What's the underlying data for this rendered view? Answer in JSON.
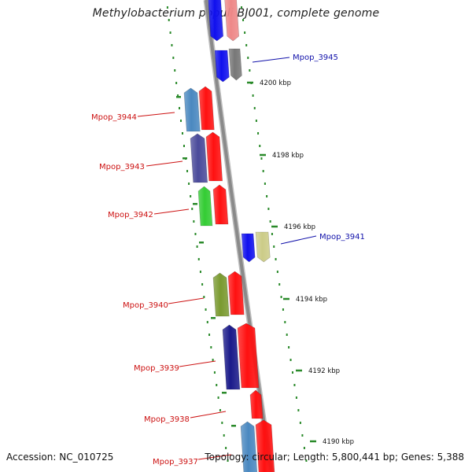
{
  "title": "Methylobacterium populi BJ001, complete genome",
  "footer": {
    "accession": "Accession: NC_010725",
    "summary": "Topology: circular; Length: 5,800,441 bp; Genes: 5,388"
  },
  "colors": {
    "backbone": "#8a8a8a",
    "tick": "#2a8a2a",
    "forward_label": "#cc1111",
    "reverse_label": "#1111aa"
  },
  "scale": {
    "unit": "kbp",
    "ticks": [
      {
        "label": "4200 kbp"
      },
      {
        "label": "4198 kbp"
      },
      {
        "label": "4196 kbp"
      },
      {
        "label": "4194 kbp"
      },
      {
        "label": "4192 kbp"
      },
      {
        "label": "4190 kbp"
      }
    ]
  },
  "genes": [
    {
      "name": "Mpop_3945",
      "strand": "reverse",
      "color": "#1010ee",
      "track2": "#777777"
    },
    {
      "name": "Mpop_3944",
      "strand": "forward",
      "color": "#4a88c0",
      "track2": "#ff1010"
    },
    {
      "name": "Mpop_3943",
      "strand": "forward",
      "color": "#4a4a9a",
      "track2": "#ff1010"
    },
    {
      "name": "Mpop_3942",
      "strand": "forward",
      "color": "#33cc33",
      "track2": "#ff1010"
    },
    {
      "name": "Mpop_3941",
      "strand": "reverse",
      "color": "#1010ee",
      "track2": "#cccc88"
    },
    {
      "name": "Mpop_3940",
      "strand": "forward",
      "color": "#7a9a30",
      "track2": "#ff1010"
    },
    {
      "name": "Mpop_3939",
      "strand": "forward",
      "color": "#1a1a8a",
      "track2": "#ff1010"
    },
    {
      "name": "Mpop_3938",
      "strand": "forward",
      "color": "",
      "track2": "#ff1010"
    },
    {
      "name": "Mpop_3937",
      "strand": "forward",
      "color": "#4a88c0",
      "track2": "#ff1010"
    }
  ]
}
